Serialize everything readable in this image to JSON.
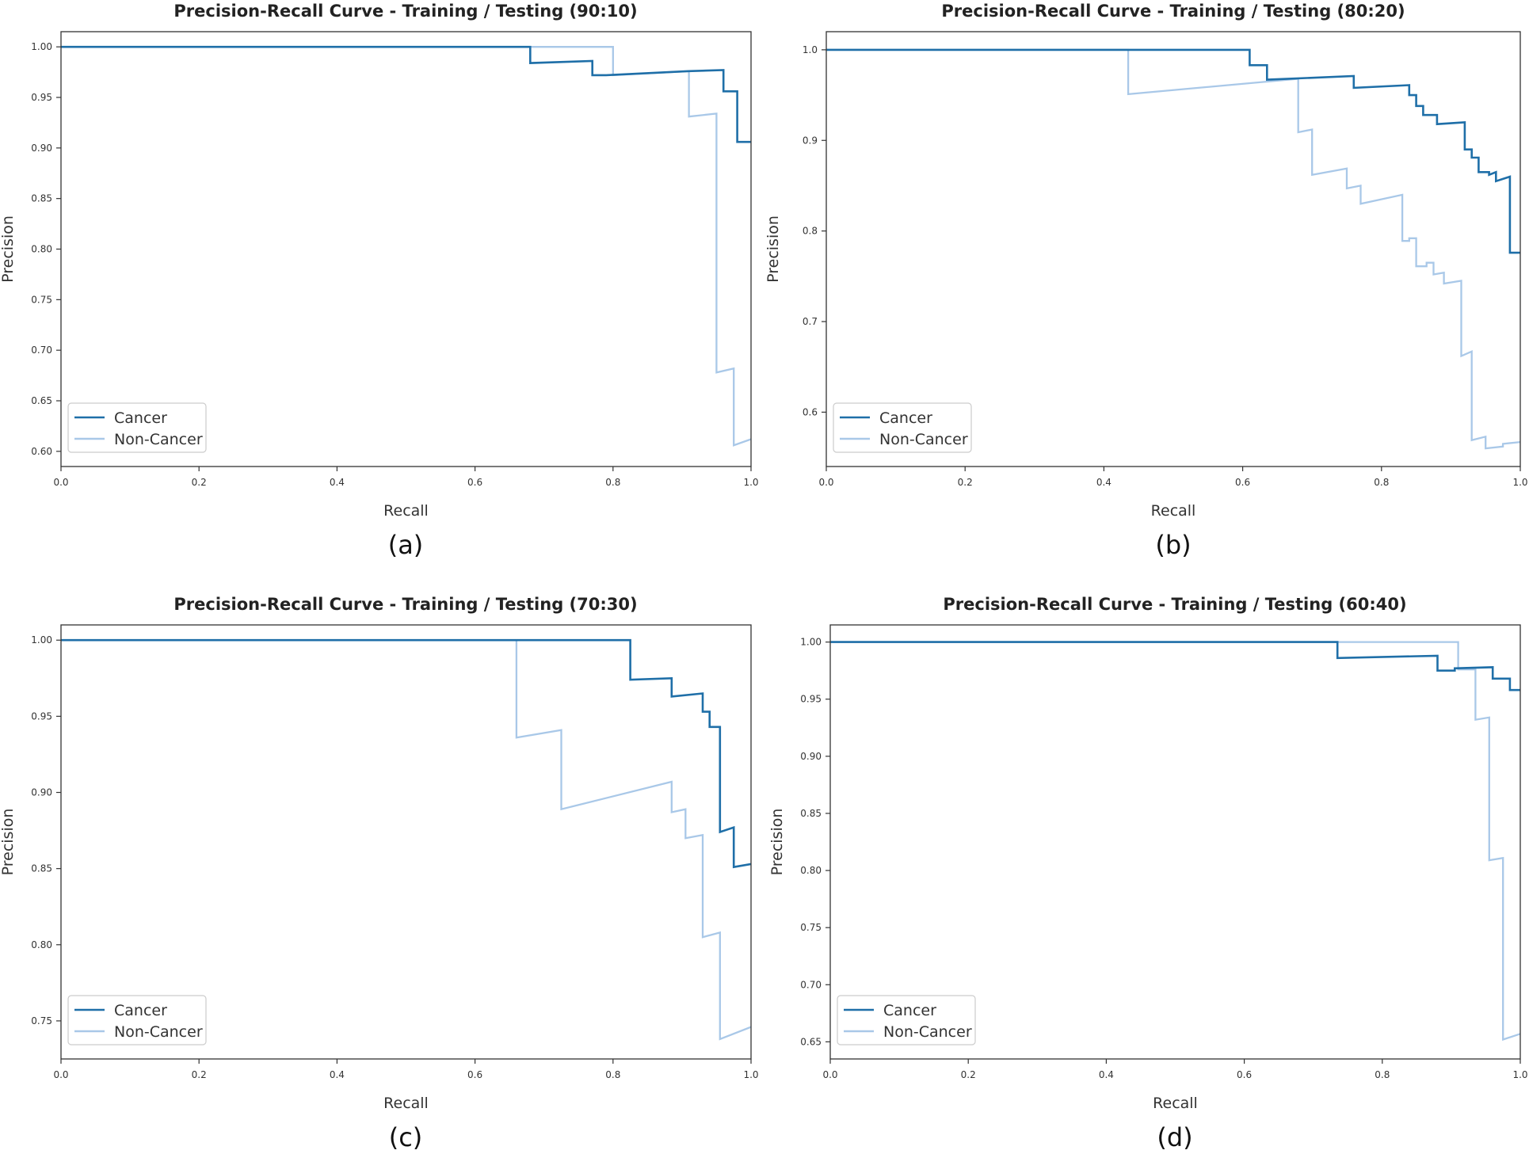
{
  "colors": {
    "cancer": "#1f6fa8",
    "non_cancer": "#a9c8e8",
    "axes": "#333333",
    "legend_border": "#cccccc"
  },
  "chart_data": [
    {
      "panel_id": "a",
      "type": "line",
      "title": "Precision-Recall Curve - Training / Testing (90:10)",
      "xlabel": "Recall",
      "ylabel": "Precision",
      "caption": "(a)",
      "xlim": [
        0.0,
        1.0
      ],
      "ylim": [
        0.585,
        1.015
      ],
      "xticks": [
        0.0,
        0.2,
        0.4,
        0.6,
        0.8,
        1.0
      ],
      "xtick_labels": [
        "0.0",
        "0.2",
        "0.4",
        "0.6",
        "0.8",
        "1.0"
      ],
      "yticks": [
        0.6,
        0.65,
        0.7,
        0.75,
        0.8,
        0.85,
        0.9,
        0.95,
        1.0
      ],
      "ytick_labels": [
        "0.60",
        "0.65",
        "0.70",
        "0.75",
        "0.80",
        "0.85",
        "0.90",
        "0.95",
        "1.00"
      ],
      "legend": "lower-left",
      "grid": false,
      "series": [
        {
          "name": "Cancer",
          "color": "#1f6fa8",
          "points": [
            [
              0,
              1.0
            ],
            [
              0.68,
              1.0
            ],
            [
              0.68,
              0.984
            ],
            [
              0.77,
              0.986
            ],
            [
              0.77,
              0.972
            ],
            [
              0.79,
              0.972
            ],
            [
              0.91,
              0.976
            ],
            [
              0.96,
              0.977
            ],
            [
              0.96,
              0.956
            ],
            [
              0.98,
              0.956
            ],
            [
              0.98,
              0.906
            ],
            [
              1.0,
              0.906
            ]
          ]
        },
        {
          "name": "Non-Cancer",
          "color": "#a9c8e8",
          "points": [
            [
              0,
              1.0
            ],
            [
              0.8,
              1.0
            ],
            [
              0.8,
              0.972
            ],
            [
              0.91,
              0.976
            ],
            [
              0.91,
              0.931
            ],
            [
              0.95,
              0.934
            ],
            [
              0.95,
              0.678
            ],
            [
              0.975,
              0.682
            ],
            [
              0.975,
              0.606
            ],
            [
              1.0,
              0.612
            ]
          ]
        }
      ]
    },
    {
      "panel_id": "b",
      "type": "line",
      "title": "Precision-Recall Curve - Training / Testing (80:20)",
      "xlabel": "Recall",
      "ylabel": "Precision",
      "caption": "(b)",
      "xlim": [
        0.0,
        1.0
      ],
      "ylim": [
        0.54,
        1.02
      ],
      "xticks": [
        0.0,
        0.2,
        0.4,
        0.6,
        0.8,
        1.0
      ],
      "xtick_labels": [
        "0.0",
        "0.2",
        "0.4",
        "0.6",
        "0.8",
        "1.0"
      ],
      "yticks": [
        0.6,
        0.7,
        0.8,
        0.9,
        1.0
      ],
      "ytick_labels": [
        "0.6",
        "0.7",
        "0.8",
        "0.9",
        "1.0"
      ],
      "legend": "lower-left",
      "grid": false,
      "series": [
        {
          "name": "Cancer",
          "color": "#1f6fa8",
          "points": [
            [
              0,
              1.0
            ],
            [
              0.61,
              1.0
            ],
            [
              0.61,
              0.983
            ],
            [
              0.635,
              0.983
            ],
            [
              0.635,
              0.967
            ],
            [
              0.76,
              0.971
            ],
            [
              0.76,
              0.958
            ],
            [
              0.84,
              0.961
            ],
            [
              0.84,
              0.95
            ],
            [
              0.85,
              0.95
            ],
            [
              0.85,
              0.938
            ],
            [
              0.86,
              0.938
            ],
            [
              0.86,
              0.928
            ],
            [
              0.88,
              0.928
            ],
            [
              0.88,
              0.918
            ],
            [
              0.92,
              0.92
            ],
            [
              0.92,
              0.89
            ],
            [
              0.93,
              0.89
            ],
            [
              0.93,
              0.881
            ],
            [
              0.94,
              0.881
            ],
            [
              0.94,
              0.865
            ],
            [
              0.955,
              0.865
            ],
            [
              0.955,
              0.862
            ],
            [
              0.965,
              0.865
            ],
            [
              0.965,
              0.855
            ],
            [
              0.985,
              0.86
            ],
            [
              0.985,
              0.776
            ],
            [
              1.0,
              0.776
            ]
          ]
        },
        {
          "name": "Non-Cancer",
          "color": "#a9c8e8",
          "points": [
            [
              0,
              1.0
            ],
            [
              0.435,
              1.0
            ],
            [
              0.435,
              0.951
            ],
            [
              0.68,
              0.968
            ],
            [
              0.68,
              0.909
            ],
            [
              0.7,
              0.912
            ],
            [
              0.7,
              0.862
            ],
            [
              0.75,
              0.869
            ],
            [
              0.75,
              0.847
            ],
            [
              0.77,
              0.85
            ],
            [
              0.77,
              0.83
            ],
            [
              0.83,
              0.84
            ],
            [
              0.83,
              0.789
            ],
            [
              0.84,
              0.789
            ],
            [
              0.84,
              0.792
            ],
            [
              0.85,
              0.792
            ],
            [
              0.85,
              0.761
            ],
            [
              0.865,
              0.761
            ],
            [
              0.865,
              0.765
            ],
            [
              0.875,
              0.765
            ],
            [
              0.875,
              0.752
            ],
            [
              0.89,
              0.754
            ],
            [
              0.89,
              0.742
            ],
            [
              0.915,
              0.745
            ],
            [
              0.915,
              0.662
            ],
            [
              0.93,
              0.667
            ],
            [
              0.93,
              0.569
            ],
            [
              0.95,
              0.573
            ],
            [
              0.95,
              0.56
            ],
            [
              0.975,
              0.562
            ],
            [
              0.975,
              0.565
            ],
            [
              1.0,
              0.567
            ]
          ]
        }
      ]
    },
    {
      "panel_id": "c",
      "type": "line",
      "title": "Precision-Recall Curve - Training / Testing (70:30)",
      "xlabel": "Recall",
      "ylabel": "Precision",
      "caption": "(c)",
      "xlim": [
        0.0,
        1.0
      ],
      "ylim": [
        0.725,
        1.01
      ],
      "xticks": [
        0.0,
        0.2,
        0.4,
        0.6,
        0.8,
        1.0
      ],
      "xtick_labels": [
        "0.0",
        "0.2",
        "0.4",
        "0.6",
        "0.8",
        "1.0"
      ],
      "yticks": [
        0.75,
        0.8,
        0.85,
        0.9,
        0.95,
        1.0
      ],
      "ytick_labels": [
        "0.75",
        "0.80",
        "0.85",
        "0.90",
        "0.95",
        "1.00"
      ],
      "legend": "lower-left",
      "grid": false,
      "series": [
        {
          "name": "Cancer",
          "color": "#1f6fa8",
          "points": [
            [
              0,
              1.0
            ],
            [
              0.825,
              1.0
            ],
            [
              0.825,
              0.974
            ],
            [
              0.885,
              0.975
            ],
            [
              0.885,
              0.963
            ],
            [
              0.93,
              0.965
            ],
            [
              0.93,
              0.953
            ],
            [
              0.94,
              0.953
            ],
            [
              0.94,
              0.943
            ],
            [
              0.955,
              0.943
            ],
            [
              0.955,
              0.874
            ],
            [
              0.975,
              0.877
            ],
            [
              0.975,
              0.851
            ],
            [
              1.0,
              0.853
            ]
          ]
        },
        {
          "name": "Non-Cancer",
          "color": "#a9c8e8",
          "points": [
            [
              0,
              1.0
            ],
            [
              0.66,
              1.0
            ],
            [
              0.66,
              0.936
            ],
            [
              0.725,
              0.941
            ],
            [
              0.725,
              0.889
            ],
            [
              0.885,
              0.907
            ],
            [
              0.885,
              0.887
            ],
            [
              0.905,
              0.889
            ],
            [
              0.905,
              0.87
            ],
            [
              0.93,
              0.872
            ],
            [
              0.93,
              0.805
            ],
            [
              0.955,
              0.808
            ],
            [
              0.955,
              0.738
            ],
            [
              1.0,
              0.746
            ]
          ]
        }
      ]
    },
    {
      "panel_id": "d",
      "type": "line",
      "title": "Precision-Recall Curve - Training / Testing (60:40)",
      "xlabel": "Recall",
      "ylabel": "Precision",
      "caption": "(d)",
      "xlim": [
        0.0,
        1.0
      ],
      "ylim": [
        0.635,
        1.015
      ],
      "xticks": [
        0.0,
        0.2,
        0.4,
        0.6,
        0.8,
        1.0
      ],
      "xtick_labels": [
        "0.0",
        "0.2",
        "0.4",
        "0.6",
        "0.8",
        "1.0"
      ],
      "yticks": [
        0.65,
        0.7,
        0.75,
        0.8,
        0.85,
        0.9,
        0.95,
        1.0
      ],
      "ytick_labels": [
        "0.65",
        "0.70",
        "0.75",
        "0.80",
        "0.85",
        "0.90",
        "0.95",
        "1.00"
      ],
      "legend": "lower-left",
      "grid": false,
      "series": [
        {
          "name": "Cancer",
          "color": "#1f6fa8",
          "points": [
            [
              0,
              1.0
            ],
            [
              0.735,
              1.0
            ],
            [
              0.735,
              0.986
            ],
            [
              0.88,
              0.988
            ],
            [
              0.88,
              0.975
            ],
            [
              0.905,
              0.975
            ],
            [
              0.905,
              0.977
            ],
            [
              0.96,
              0.978
            ],
            [
              0.96,
              0.968
            ],
            [
              0.985,
              0.968
            ],
            [
              0.985,
              0.958
            ],
            [
              1.0,
              0.958
            ]
          ]
        },
        {
          "name": "Non-Cancer",
          "color": "#a9c8e8",
          "points": [
            [
              0,
              1.0
            ],
            [
              0.91,
              1.0
            ],
            [
              0.91,
              0.976
            ],
            [
              0.935,
              0.976
            ],
            [
              0.935,
              0.932
            ],
            [
              0.955,
              0.934
            ],
            [
              0.955,
              0.809
            ],
            [
              0.975,
              0.811
            ],
            [
              0.975,
              0.652
            ],
            [
              1.0,
              0.657
            ]
          ]
        }
      ]
    }
  ]
}
